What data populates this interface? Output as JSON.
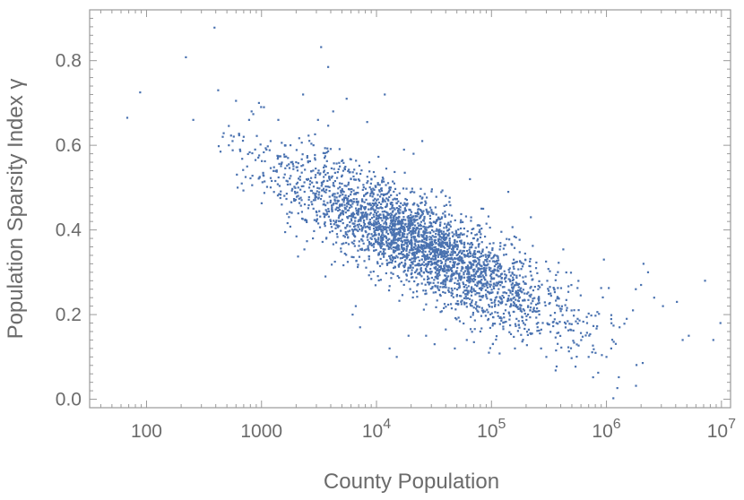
{
  "chart_data": {
    "type": "scatter",
    "title": "",
    "xlabel": "County Population",
    "ylabel": "Population Sparsity Index γ",
    "xscale": "log10",
    "xlim": [
      32,
      12000000
    ],
    "ylim": [
      -0.02,
      0.92
    ],
    "x_ticks": [
      {
        "value": 100,
        "label": "100"
      },
      {
        "value": 1000,
        "label": "1000"
      },
      {
        "value": 10000,
        "base": "10",
        "exp": "4"
      },
      {
        "value": 100000,
        "base": "10",
        "exp": "5"
      },
      {
        "value": 1000000,
        "base": "10",
        "exp": "6"
      },
      {
        "value": 10000000,
        "base": "10",
        "exp": "7"
      }
    ],
    "y_ticks": [
      {
        "value": 0.0,
        "label": "0.0"
      },
      {
        "value": 0.2,
        "label": "0.2"
      },
      {
        "value": 0.4,
        "label": "0.4"
      },
      {
        "value": 0.6,
        "label": "0.6"
      },
      {
        "value": 0.8,
        "label": "0.8"
      }
    ],
    "grid": false,
    "marker_color": "#4a72b0",
    "series": [
      {
        "points": [
          [
            68,
            0.665
          ],
          [
            88,
            0.725
          ],
          [
            220,
            0.808
          ],
          [
            255,
            0.66
          ],
          [
            390,
            0.878
          ],
          [
            420,
            0.73
          ],
          [
            440,
            0.585
          ],
          [
            460,
            0.62
          ],
          [
            520,
            0.6
          ],
          [
            560,
            0.61
          ],
          [
            600,
            0.705
          ],
          [
            620,
            0.5
          ],
          [
            650,
            0.59
          ],
          [
            700,
            0.62
          ],
          [
            750,
            0.55
          ],
          [
            780,
            0.66
          ],
          [
            820,
            0.68
          ],
          [
            880,
            0.59
          ],
          [
            950,
            0.7
          ],
          [
            1050,
            0.69
          ],
          [
            1200,
            0.61
          ],
          [
            1400,
            0.66
          ],
          [
            1500,
            0.46
          ],
          [
            1700,
            0.57
          ],
          [
            2000,
            0.56
          ],
          [
            2300,
            0.72
          ],
          [
            2600,
            0.5
          ],
          [
            2800,
            0.38
          ],
          [
            3100,
            0.66
          ],
          [
            3300,
            0.832
          ],
          [
            3600,
            0.29
          ],
          [
            3800,
            0.785
          ],
          [
            4200,
            0.68
          ],
          [
            4800,
            0.55
          ],
          [
            5500,
            0.71
          ],
          [
            6200,
            0.2
          ],
          [
            6600,
            0.22
          ],
          [
            7200,
            0.17
          ],
          [
            8300,
            0.655
          ],
          [
            11800,
            0.72
          ],
          [
            13000,
            0.12
          ],
          [
            15000,
            0.1
          ],
          [
            19000,
            0.15
          ],
          [
            21000,
            0.58
          ],
          [
            25000,
            0.61
          ],
          [
            27000,
            0.15
          ],
          [
            32000,
            0.13
          ],
          [
            40000,
            0.48
          ],
          [
            48000,
            0.12
          ],
          [
            61000,
            0.14
          ],
          [
            65000,
            0.52
          ],
          [
            80000,
            0.16
          ],
          [
            95000,
            0.11
          ],
          [
            140000,
            0.49
          ],
          [
            160000,
            0.12
          ],
          [
            190000,
            0.18
          ],
          [
            220000,
            0.43
          ],
          [
            270000,
            0.12
          ],
          [
            300000,
            0.1
          ],
          [
            450000,
            0.21
          ],
          [
            700000,
            0.1
          ],
          [
            950000,
            0.33
          ],
          [
            1000000,
            0.1
          ],
          [
            1100000,
            0.12
          ],
          [
            1300000,
            0.17
          ],
          [
            2100000,
            0.32
          ],
          [
            2300000,
            0.3
          ],
          [
            2600000,
            0.24
          ],
          [
            3100000,
            0.22
          ],
          [
            4100000,
            0.23
          ],
          [
            4600000,
            0.14
          ],
          [
            5200000,
            0.15
          ],
          [
            8500000,
            0.14
          ],
          [
            9800000,
            0.18
          ],
          [
            7200000,
            0.28
          ],
          [
            1800000,
            0.26
          ],
          [
            1500000,
            0.19
          ],
          [
            1700000,
            0.21
          ],
          [
            2000000,
            0.27
          ],
          [
            12500,
            0.44
          ],
          [
            13500,
            0.34
          ],
          [
            14000,
            0.43
          ],
          [
            15500,
            0.38
          ],
          [
            16500,
            0.41
          ],
          [
            17500,
            0.39
          ],
          [
            18500,
            0.36
          ],
          [
            20000,
            0.37
          ],
          [
            22000,
            0.4
          ],
          [
            24000,
            0.35
          ],
          [
            26000,
            0.39
          ],
          [
            28000,
            0.32
          ],
          [
            30000,
            0.37
          ],
          [
            33000,
            0.34
          ],
          [
            35000,
            0.3
          ],
          [
            38000,
            0.36
          ],
          [
            42000,
            0.33
          ],
          [
            45000,
            0.31
          ],
          [
            50000,
            0.34
          ],
          [
            55000,
            0.29
          ],
          [
            60000,
            0.31
          ],
          [
            9000,
            0.45
          ],
          [
            9500,
            0.41
          ],
          [
            10000,
            0.47
          ],
          [
            10500,
            0.43
          ],
          [
            11000,
            0.4
          ],
          [
            7800,
            0.48
          ],
          [
            8600,
            0.46
          ],
          [
            6900,
            0.5
          ],
          [
            6000,
            0.52
          ],
          [
            5200,
            0.49
          ]
        ]
      }
    ],
    "generated_cloud": {
      "n": 3100,
      "log10x_mean": 4.4,
      "log10x_sd": 0.62,
      "slope_per_decade": -0.135,
      "y_at_log10x_4_4": 0.365,
      "y_noise_sd": 0.055,
      "seed": 17
    }
  }
}
